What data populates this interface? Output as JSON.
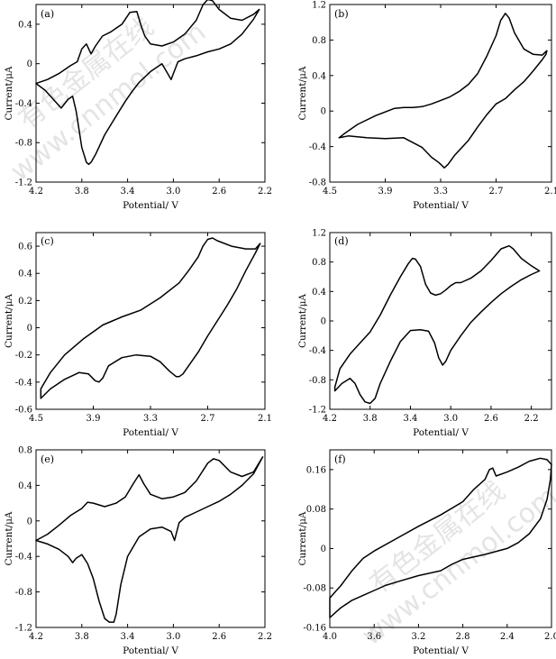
{
  "chart_data": [
    {
      "type": "line",
      "panel_label": "(a)",
      "xlabel": "Potential/ V",
      "ylabel": "Current/μA",
      "xlim": [
        4.2,
        2.2
      ],
      "ylim": [
        -1.2,
        0.6
      ],
      "xticks": [
        "4.2",
        "3.8",
        "3.4",
        "3.0",
        "2.6",
        "2.2"
      ],
      "yticks": [
        "-1.2",
        "-0.8",
        "-0.4",
        "0",
        "0.4"
      ],
      "xtick_values": [
        4.2,
        3.8,
        3.4,
        3.0,
        2.6,
        2.2
      ],
      "ytick_values": [
        -1.2,
        -0.8,
        -0.4,
        0,
        0.4
      ],
      "series": [
        {
          "x": [
            4.2,
            4.12,
            4.05,
            3.98,
            3.92,
            3.88,
            3.85,
            3.8,
            3.76,
            3.74,
            3.72,
            3.68,
            3.6,
            3.5,
            3.42,
            3.36,
            3.3,
            3.2,
            3.1,
            3.05,
            3.02,
            3.0,
            2.96,
            2.9,
            2.8,
            2.7,
            2.6,
            2.5,
            2.4,
            2.3,
            2.25,
            2.25,
            2.3,
            2.4,
            2.5,
            2.6,
            2.66,
            2.7,
            2.74,
            2.8,
            2.9,
            3.0,
            3.1,
            3.2,
            3.25,
            3.28,
            3.32,
            3.38,
            3.45,
            3.55,
            3.62,
            3.68,
            3.72,
            3.76,
            3.8,
            3.84,
            3.9,
            4.0,
            4.1,
            4.2
          ],
          "y": [
            -0.2,
            -0.27,
            -0.36,
            -0.45,
            -0.36,
            -0.33,
            -0.48,
            -0.85,
            -1.0,
            -1.02,
            -1.0,
            -0.92,
            -0.72,
            -0.53,
            -0.38,
            -0.28,
            -0.19,
            -0.08,
            0.0,
            -0.1,
            -0.16,
            -0.1,
            0.02,
            0.05,
            0.08,
            0.12,
            0.15,
            0.2,
            0.3,
            0.45,
            0.55,
            0.55,
            0.5,
            0.44,
            0.46,
            0.55,
            0.64,
            0.65,
            0.6,
            0.44,
            0.3,
            0.22,
            0.18,
            0.2,
            0.28,
            0.38,
            0.53,
            0.52,
            0.4,
            0.32,
            0.28,
            0.18,
            0.1,
            0.2,
            0.15,
            0.02,
            -0.02,
            -0.1,
            -0.16,
            -0.2
          ]
        }
      ]
    },
    {
      "type": "line",
      "panel_label": "(b)",
      "xlabel": "Potential/ V",
      "ylabel": "Current/μA",
      "xlim": [
        4.5,
        2.1
      ],
      "ylim": [
        -0.8,
        1.2
      ],
      "xticks": [
        "4.5",
        "3.9",
        "3.3",
        "2.7",
        "2.1"
      ],
      "yticks": [
        "-0.8",
        "-0.4",
        "0",
        "0.4",
        "0.8",
        "1.2"
      ],
      "xtick_values": [
        4.5,
        3.9,
        3.3,
        2.7,
        2.1
      ],
      "ytick_values": [
        -0.8,
        -0.4,
        0,
        0.4,
        0.8,
        1.2
      ],
      "series": [
        {
          "x": [
            4.4,
            4.3,
            4.1,
            3.9,
            3.7,
            3.5,
            3.4,
            3.32,
            3.26,
            3.22,
            3.15,
            3.0,
            2.9,
            2.8,
            2.7,
            2.6,
            2.5,
            2.4,
            2.3,
            2.2,
            2.16,
            2.15,
            2.2,
            2.3,
            2.4,
            2.5,
            2.56,
            2.6,
            2.65,
            2.7,
            2.8,
            2.9,
            3.0,
            3.1,
            3.2,
            3.3,
            3.4,
            3.5,
            3.6,
            3.7,
            3.8,
            4.0,
            4.2,
            4.35,
            4.4
          ],
          "y": [
            -0.3,
            -0.28,
            -0.3,
            -0.31,
            -0.3,
            -0.41,
            -0.52,
            -0.58,
            -0.64,
            -0.6,
            -0.5,
            -0.33,
            -0.18,
            -0.04,
            0.08,
            0.14,
            0.24,
            0.33,
            0.45,
            0.58,
            0.64,
            0.68,
            0.63,
            0.64,
            0.7,
            0.88,
            1.05,
            1.1,
            1.02,
            0.85,
            0.62,
            0.42,
            0.3,
            0.22,
            0.16,
            0.12,
            0.08,
            0.05,
            0.04,
            0.04,
            0.03,
            -0.05,
            -0.15,
            -0.26,
            -0.3
          ]
        }
      ]
    },
    {
      "type": "line",
      "panel_label": "(c)",
      "xlabel": "Potential/ V",
      "ylabel": "Current/μA",
      "xlim": [
        4.5,
        2.1
      ],
      "ylim": [
        -0.6,
        0.7
      ],
      "xticks": [
        "4.5",
        "3.9",
        "3.3",
        "2.7",
        "2.1"
      ],
      "yticks": [
        "-0.6",
        "-0.4",
        "-0.2",
        "0",
        "0.2",
        "0.4",
        "0.6"
      ],
      "xtick_values": [
        4.5,
        3.9,
        3.3,
        2.7,
        2.1
      ],
      "ytick_values": [
        -0.6,
        -0.4,
        -0.2,
        0,
        0.2,
        0.4,
        0.6
      ],
      "series": [
        {
          "x": [
            4.45,
            4.35,
            4.2,
            4.05,
            3.95,
            3.88,
            3.84,
            3.8,
            3.74,
            3.6,
            3.45,
            3.3,
            3.2,
            3.1,
            3.03,
            3.0,
            2.96,
            2.9,
            2.8,
            2.7,
            2.6,
            2.5,
            2.4,
            2.3,
            2.2,
            2.15,
            2.15,
            2.2,
            2.3,
            2.45,
            2.6,
            2.65,
            2.7,
            2.75,
            2.8,
            2.9,
            3.0,
            3.2,
            3.4,
            3.6,
            3.7,
            3.8,
            4.0,
            4.2,
            4.35,
            4.45
          ],
          "y": [
            -0.52,
            -0.45,
            -0.38,
            -0.33,
            -0.34,
            -0.39,
            -0.4,
            -0.37,
            -0.28,
            -0.22,
            -0.2,
            -0.21,
            -0.25,
            -0.32,
            -0.36,
            -0.36,
            -0.34,
            -0.28,
            -0.18,
            -0.06,
            0.05,
            0.16,
            0.28,
            0.42,
            0.55,
            0.62,
            0.62,
            0.58,
            0.58,
            0.6,
            0.64,
            0.66,
            0.65,
            0.6,
            0.52,
            0.42,
            0.33,
            0.22,
            0.13,
            0.08,
            0.05,
            0.02,
            -0.08,
            -0.2,
            -0.33,
            -0.45
          ]
        }
      ]
    },
    {
      "type": "line",
      "panel_label": "(d)",
      "xlabel": "Potential/ V",
      "ylabel": "Current/μA",
      "xlim": [
        4.2,
        2.0
      ],
      "ylim": [
        -1.2,
        1.2
      ],
      "xticks": [
        "4.2",
        "3.8",
        "3.4",
        "3.0",
        "2.6",
        "2.2"
      ],
      "yticks": [
        "-1.2",
        "-0.8",
        "-0.4",
        "0",
        "0.4",
        "0.8",
        "1.2"
      ],
      "xtick_values": [
        4.2,
        3.8,
        3.4,
        3.0,
        2.6,
        2.2
      ],
      "ytick_values": [
        -1.2,
        -0.8,
        -0.4,
        0,
        0.4,
        0.8,
        1.2
      ],
      "series": [
        {
          "x": [
            4.15,
            4.08,
            4.0,
            3.95,
            3.9,
            3.85,
            3.8,
            3.75,
            3.7,
            3.6,
            3.5,
            3.4,
            3.3,
            3.22,
            3.16,
            3.12,
            3.08,
            3.05,
            3.0,
            2.9,
            2.8,
            2.7,
            2.6,
            2.5,
            2.4,
            2.3,
            2.2,
            2.12,
            2.12,
            2.2,
            2.3,
            2.38,
            2.42,
            2.5,
            2.6,
            2.7,
            2.8,
            2.9,
            2.95,
            3.0,
            3.05,
            3.1,
            3.15,
            3.2,
            3.25,
            3.3,
            3.35,
            3.38,
            3.42,
            3.5,
            3.6,
            3.7,
            3.8,
            3.9,
            4.0,
            4.1,
            4.15
          ],
          "y": [
            -0.95,
            -0.85,
            -0.78,
            -0.85,
            -1.0,
            -1.1,
            -1.12,
            -1.05,
            -0.85,
            -0.55,
            -0.28,
            -0.13,
            -0.12,
            -0.14,
            -0.3,
            -0.5,
            -0.6,
            -0.55,
            -0.4,
            -0.2,
            -0.02,
            0.12,
            0.25,
            0.37,
            0.47,
            0.56,
            0.63,
            0.68,
            0.68,
            0.75,
            0.85,
            0.98,
            1.02,
            0.98,
            0.82,
            0.68,
            0.58,
            0.52,
            0.52,
            0.48,
            0.42,
            0.37,
            0.35,
            0.38,
            0.5,
            0.74,
            0.84,
            0.85,
            0.78,
            0.6,
            0.35,
            0.08,
            -0.15,
            -0.3,
            -0.45,
            -0.65,
            -0.9
          ]
        }
      ]
    },
    {
      "type": "line",
      "panel_label": "(e)",
      "xlabel": "Potential/ V",
      "ylabel": "Current/μA",
      "xlim": [
        4.2,
        2.2
      ],
      "ylim": [
        -1.2,
        0.8
      ],
      "xticks": [
        "4.2",
        "3.8",
        "3.4",
        "3.0",
        "2.6",
        "2.2"
      ],
      "yticks": [
        "-1.2",
        "-0.8",
        "-0.4",
        "0",
        "0.4",
        "0.8"
      ],
      "xtick_values": [
        4.2,
        3.8,
        3.4,
        3.0,
        2.6,
        2.2
      ],
      "ytick_values": [
        -1.2,
        -0.8,
        -0.4,
        0,
        0.4,
        0.8
      ],
      "series": [
        {
          "x": [
            4.2,
            4.1,
            4.0,
            3.92,
            3.88,
            3.85,
            3.8,
            3.75,
            3.7,
            3.65,
            3.6,
            3.56,
            3.52,
            3.5,
            3.46,
            3.4,
            3.3,
            3.2,
            3.1,
            3.02,
            2.99,
            2.97,
            2.95,
            2.9,
            2.8,
            2.7,
            2.6,
            2.5,
            2.4,
            2.3,
            2.22,
            2.22,
            2.3,
            2.4,
            2.5,
            2.6,
            2.65,
            2.7,
            2.8,
            2.9,
            3.0,
            3.1,
            3.2,
            3.26,
            3.3,
            3.35,
            3.42,
            3.5,
            3.6,
            3.7,
            3.75,
            3.8,
            3.9,
            4.0,
            4.1,
            4.2
          ],
          "y": [
            -0.22,
            -0.26,
            -0.32,
            -0.4,
            -0.47,
            -0.42,
            -0.38,
            -0.48,
            -0.65,
            -0.9,
            -1.1,
            -1.14,
            -1.14,
            -1.05,
            -0.72,
            -0.4,
            -0.18,
            -0.09,
            -0.07,
            -0.12,
            -0.22,
            -0.12,
            -0.02,
            0.04,
            0.1,
            0.16,
            0.22,
            0.3,
            0.4,
            0.53,
            0.72,
            0.72,
            0.55,
            0.5,
            0.55,
            0.68,
            0.7,
            0.65,
            0.45,
            0.32,
            0.27,
            0.25,
            0.3,
            0.42,
            0.52,
            0.42,
            0.27,
            0.2,
            0.16,
            0.2,
            0.21,
            0.14,
            0.06,
            -0.05,
            -0.15,
            -0.22
          ]
        }
      ]
    },
    {
      "type": "line",
      "panel_label": "(f)",
      "xlabel": "Potential/ V",
      "ylabel": "Current/μA",
      "xlim": [
        4.0,
        2.0
      ],
      "ylim": [
        -0.16,
        0.2
      ],
      "xticks": [
        "4.0",
        "3.6",
        "3.2",
        "2.8",
        "2.4",
        "2.0"
      ],
      "yticks": [
        "-0.16",
        "-0.08",
        "0",
        "0.08",
        "0.16"
      ],
      "xtick_values": [
        4.0,
        3.6,
        3.2,
        2.8,
        2.4,
        2.0
      ],
      "ytick_values": [
        -0.16,
        -0.08,
        0,
        0.08,
        0.16
      ],
      "series": [
        {
          "x": [
            4.0,
            3.9,
            3.8,
            3.7,
            3.6,
            3.5,
            3.4,
            3.2,
            3.0,
            2.9,
            2.8,
            2.6,
            2.4,
            2.3,
            2.2,
            2.1,
            2.04,
            2.01,
            2.0,
            2.04,
            2.1,
            2.2,
            2.3,
            2.4,
            2.5,
            2.53,
            2.56,
            2.6,
            2.7,
            2.8,
            3.0,
            3.2,
            3.4,
            3.6,
            3.7,
            3.8,
            3.9,
            4.0
          ],
          "y": [
            -0.14,
            -0.12,
            -0.105,
            -0.095,
            -0.085,
            -0.075,
            -0.068,
            -0.055,
            -0.045,
            -0.032,
            -0.022,
            -0.012,
            0.0,
            0.012,
            0.03,
            0.06,
            0.1,
            0.14,
            0.17,
            0.18,
            0.183,
            0.177,
            0.165,
            0.155,
            0.147,
            0.163,
            0.16,
            0.14,
            0.12,
            0.095,
            0.068,
            0.045,
            0.02,
            -0.005,
            -0.02,
            -0.045,
            -0.075,
            -0.1
          ]
        }
      ]
    }
  ],
  "watermark": {
    "line1": "有色金属在线",
    "line2": "www.cnnmol.com"
  }
}
